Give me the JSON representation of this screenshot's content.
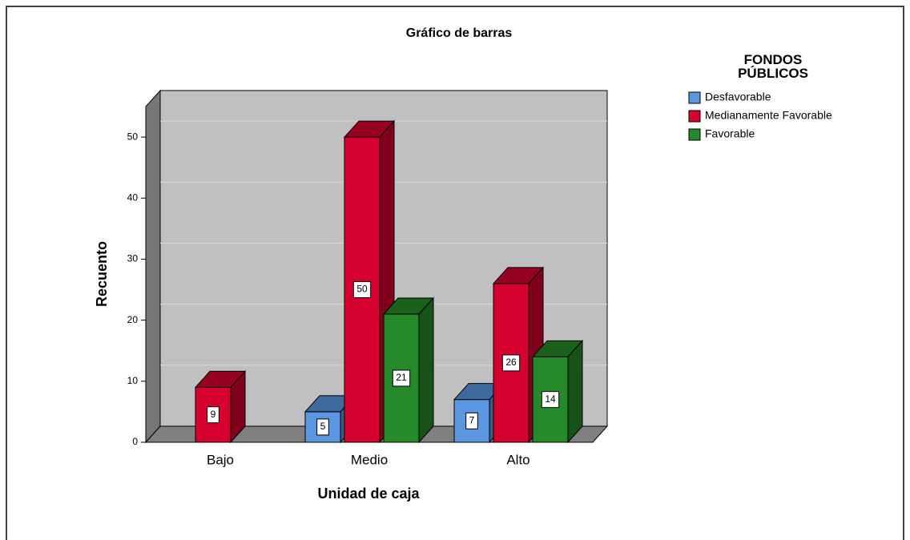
{
  "chart_data": {
    "type": "bar3d",
    "title": "Gráfico de barras",
    "x_label": "Unidad de caja",
    "y_label": "Recuento",
    "legend_title": "FONDOS PÚBLICOS",
    "legend": "top-right",
    "grid": true,
    "categories": [
      "Bajo",
      "Medio",
      "Alto"
    ],
    "series": [
      {
        "name": "Desfavorable",
        "color": "#5b96e0",
        "values": [
          null,
          5,
          7
        ]
      },
      {
        "name": "Medianamente Favorable",
        "color": "#d6002f",
        "values": [
          9,
          50,
          26
        ]
      },
      {
        "name": "Favorable",
        "color": "#268a2a",
        "values": [
          null,
          21,
          14
        ]
      }
    ],
    "ylim": [
      0,
      55
    ],
    "yticks": [
      0,
      10,
      20,
      30,
      40,
      50
    ]
  }
}
